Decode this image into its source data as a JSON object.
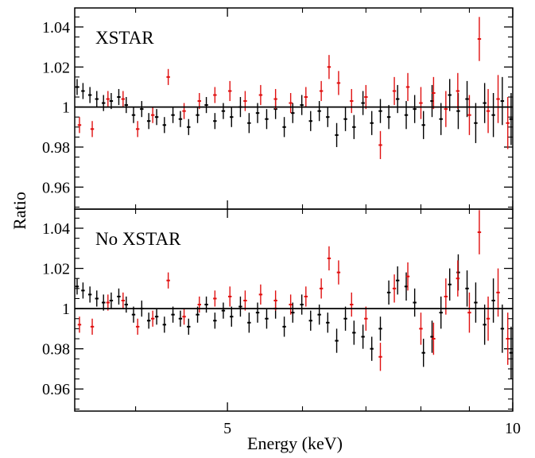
{
  "chart_data": [
    {
      "type": "scatter",
      "panel_label": "XSTAR",
      "xlabel": "Energy  (keV)",
      "ylabel": "Ratio",
      "x_scale": "log",
      "xlim": [
        3.45,
        10.0
      ],
      "ylim": [
        0.949,
        1.0495
      ],
      "x_ticks": [
        5,
        10
      ],
      "y_ticks": [
        0.96,
        0.98,
        1,
        1.02,
        1.04
      ],
      "y_tick_labels": [
        "0.96",
        "0.98",
        "1",
        "1.02",
        "1.04"
      ],
      "reference_line": 1.0,
      "series": [
        {
          "color": "#000000",
          "points": [
            {
              "x": 3.47,
              "y": 1.01,
              "err": 0.004
            },
            {
              "x": 3.52,
              "y": 1.008,
              "err": 0.004
            },
            {
              "x": 3.58,
              "y": 1.006,
              "err": 0.004
            },
            {
              "x": 3.64,
              "y": 1.004,
              "err": 0.004
            },
            {
              "x": 3.7,
              "y": 1.002,
              "err": 0.004
            },
            {
              "x": 3.77,
              "y": 1.003,
              "err": 0.004
            },
            {
              "x": 3.84,
              "y": 1.005,
              "err": 0.004
            },
            {
              "x": 3.91,
              "y": 1.001,
              "err": 0.004
            },
            {
              "x": 3.98,
              "y": 0.996,
              "err": 0.004
            },
            {
              "x": 4.06,
              "y": 0.999,
              "err": 0.004
            },
            {
              "x": 4.13,
              "y": 0.993,
              "err": 0.004
            },
            {
              "x": 4.21,
              "y": 0.995,
              "err": 0.004
            },
            {
              "x": 4.29,
              "y": 0.991,
              "err": 0.004
            },
            {
              "x": 4.38,
              "y": 0.996,
              "err": 0.004
            },
            {
              "x": 4.46,
              "y": 0.994,
              "err": 0.004
            },
            {
              "x": 4.55,
              "y": 0.99,
              "err": 0.004
            },
            {
              "x": 4.65,
              "y": 0.996,
              "err": 0.004
            },
            {
              "x": 4.75,
              "y": 1.001,
              "err": 0.004
            },
            {
              "x": 4.85,
              "y": 0.993,
              "err": 0.004
            },
            {
              "x": 4.95,
              "y": 0.998,
              "err": 0.004
            },
            {
              "x": 5.05,
              "y": 0.995,
              "err": 0.005
            },
            {
              "x": 5.16,
              "y": 1.0,
              "err": 0.005
            },
            {
              "x": 5.27,
              "y": 0.992,
              "err": 0.005
            },
            {
              "x": 5.38,
              "y": 0.997,
              "err": 0.005
            },
            {
              "x": 5.5,
              "y": 0.994,
              "err": 0.005
            },
            {
              "x": 5.62,
              "y": 0.999,
              "err": 0.005
            },
            {
              "x": 5.74,
              "y": 0.99,
              "err": 0.005
            },
            {
              "x": 5.86,
              "y": 0.997,
              "err": 0.005
            },
            {
              "x": 5.99,
              "y": 1.001,
              "err": 0.005
            },
            {
              "x": 6.12,
              "y": 0.993,
              "err": 0.005
            },
            {
              "x": 6.25,
              "y": 0.998,
              "err": 0.005
            },
            {
              "x": 6.38,
              "y": 0.995,
              "err": 0.005
            },
            {
              "x": 6.52,
              "y": 0.986,
              "err": 0.006
            },
            {
              "x": 6.66,
              "y": 0.994,
              "err": 0.006
            },
            {
              "x": 6.8,
              "y": 0.99,
              "err": 0.006
            },
            {
              "x": 6.95,
              "y": 1.002,
              "err": 0.006
            },
            {
              "x": 7.1,
              "y": 0.992,
              "err": 0.006
            },
            {
              "x": 7.25,
              "y": 0.998,
              "err": 0.006
            },
            {
              "x": 7.4,
              "y": 0.995,
              "err": 0.006
            },
            {
              "x": 7.56,
              "y": 1.004,
              "err": 0.007
            },
            {
              "x": 7.72,
              "y": 0.996,
              "err": 0.007
            },
            {
              "x": 7.88,
              "y": 0.999,
              "err": 0.007
            },
            {
              "x": 8.05,
              "y": 0.991,
              "err": 0.007
            },
            {
              "x": 8.22,
              "y": 1.003,
              "err": 0.008
            },
            {
              "x": 8.4,
              "y": 0.994,
              "err": 0.008
            },
            {
              "x": 8.58,
              "y": 1.006,
              "err": 0.008
            },
            {
              "x": 8.76,
              "y": 0.998,
              "err": 0.009
            },
            {
              "x": 8.95,
              "y": 1.004,
              "err": 0.009
            },
            {
              "x": 9.14,
              "y": 0.992,
              "err": 0.01
            },
            {
              "x": 9.34,
              "y": 1.002,
              "err": 0.01
            },
            {
              "x": 9.54,
              "y": 0.996,
              "err": 0.011
            },
            {
              "x": 9.75,
              "y": 1.003,
              "err": 0.012
            },
            {
              "x": 9.96,
              "y": 0.994,
              "err": 0.013
            }
          ]
        },
        {
          "color": "#e01010",
          "points": [
            {
              "x": 3.49,
              "y": 0.991,
              "err": 0.004
            },
            {
              "x": 3.6,
              "y": 0.989,
              "err": 0.004
            },
            {
              "x": 3.74,
              "y": 1.004,
              "err": 0.004
            },
            {
              "x": 3.88,
              "y": 1.004,
              "err": 0.004
            },
            {
              "x": 4.02,
              "y": 0.989,
              "err": 0.004
            },
            {
              "x": 4.17,
              "y": 0.996,
              "err": 0.004
            },
            {
              "x": 4.33,
              "y": 1.015,
              "err": 0.004
            },
            {
              "x": 4.5,
              "y": 0.998,
              "err": 0.004
            },
            {
              "x": 4.67,
              "y": 1.003,
              "err": 0.004
            },
            {
              "x": 4.85,
              "y": 1.006,
              "err": 0.004
            },
            {
              "x": 5.03,
              "y": 1.008,
              "err": 0.005
            },
            {
              "x": 5.22,
              "y": 1.003,
              "err": 0.005
            },
            {
              "x": 5.42,
              "y": 1.006,
              "err": 0.005
            },
            {
              "x": 5.62,
              "y": 1.004,
              "err": 0.005
            },
            {
              "x": 5.83,
              "y": 1.002,
              "err": 0.005
            },
            {
              "x": 6.05,
              "y": 1.005,
              "err": 0.005
            },
            {
              "x": 6.28,
              "y": 1.008,
              "err": 0.005
            },
            {
              "x": 6.4,
              "y": 1.02,
              "err": 0.006
            },
            {
              "x": 6.55,
              "y": 1.012,
              "err": 0.006
            },
            {
              "x": 6.76,
              "y": 1.003,
              "err": 0.006
            },
            {
              "x": 7.0,
              "y": 1.005,
              "err": 0.006
            },
            {
              "x": 7.25,
              "y": 0.981,
              "err": 0.007
            },
            {
              "x": 7.5,
              "y": 1.008,
              "err": 0.007
            },
            {
              "x": 7.75,
              "y": 1.01,
              "err": 0.007
            },
            {
              "x": 8.0,
              "y": 1.002,
              "err": 0.008
            },
            {
              "x": 8.25,
              "y": 1.007,
              "err": 0.008
            },
            {
              "x": 8.5,
              "y": 0.999,
              "err": 0.009
            },
            {
              "x": 8.75,
              "y": 1.008,
              "err": 0.009
            },
            {
              "x": 9.0,
              "y": 0.996,
              "err": 0.01
            },
            {
              "x": 9.22,
              "y": 1.034,
              "err": 0.011
            },
            {
              "x": 9.42,
              "y": 0.998,
              "err": 0.011
            },
            {
              "x": 9.65,
              "y": 1.004,
              "err": 0.012
            },
            {
              "x": 9.88,
              "y": 0.992,
              "err": 0.013
            }
          ]
        }
      ]
    },
    {
      "type": "scatter",
      "panel_label": "No XSTAR",
      "xlabel": "Energy  (keV)",
      "ylabel": "Ratio",
      "x_scale": "log",
      "xlim": [
        3.45,
        10.0
      ],
      "ylim": [
        0.949,
        1.0495
      ],
      "x_ticks": [
        5,
        10
      ],
      "x_tick_labels": [
        "5",
        "10"
      ],
      "y_ticks": [
        0.96,
        0.98,
        1,
        1.02,
        1.04
      ],
      "y_tick_labels": [
        "0.96",
        "0.98",
        "1",
        "1.02",
        "1.04"
      ],
      "reference_line": 1.0,
      "series": [
        {
          "color": "#000000",
          "points": [
            {
              "x": 3.47,
              "y": 1.011,
              "err": 0.004
            },
            {
              "x": 3.52,
              "y": 1.009,
              "err": 0.004
            },
            {
              "x": 3.58,
              "y": 1.007,
              "err": 0.004
            },
            {
              "x": 3.64,
              "y": 1.005,
              "err": 0.004
            },
            {
              "x": 3.7,
              "y": 1.003,
              "err": 0.004
            },
            {
              "x": 3.77,
              "y": 1.004,
              "err": 0.004
            },
            {
              "x": 3.84,
              "y": 1.006,
              "err": 0.004
            },
            {
              "x": 3.91,
              "y": 1.002,
              "err": 0.004
            },
            {
              "x": 3.98,
              "y": 0.997,
              "err": 0.004
            },
            {
              "x": 4.06,
              "y": 1.0,
              "err": 0.004
            },
            {
              "x": 4.13,
              "y": 0.994,
              "err": 0.004
            },
            {
              "x": 4.21,
              "y": 0.996,
              "err": 0.004
            },
            {
              "x": 4.29,
              "y": 0.992,
              "err": 0.004
            },
            {
              "x": 4.38,
              "y": 0.997,
              "err": 0.004
            },
            {
              "x": 4.46,
              "y": 0.995,
              "err": 0.004
            },
            {
              "x": 4.55,
              "y": 0.991,
              "err": 0.004
            },
            {
              "x": 4.65,
              "y": 0.997,
              "err": 0.004
            },
            {
              "x": 4.75,
              "y": 1.002,
              "err": 0.004
            },
            {
              "x": 4.85,
              "y": 0.994,
              "err": 0.004
            },
            {
              "x": 4.95,
              "y": 0.999,
              "err": 0.004
            },
            {
              "x": 5.05,
              "y": 0.996,
              "err": 0.005
            },
            {
              "x": 5.16,
              "y": 1.001,
              "err": 0.005
            },
            {
              "x": 5.27,
              "y": 0.993,
              "err": 0.005
            },
            {
              "x": 5.38,
              "y": 0.998,
              "err": 0.005
            },
            {
              "x": 5.5,
              "y": 0.995,
              "err": 0.005
            },
            {
              "x": 5.62,
              "y": 1.0,
              "err": 0.005
            },
            {
              "x": 5.74,
              "y": 0.991,
              "err": 0.005
            },
            {
              "x": 5.86,
              "y": 0.998,
              "err": 0.005
            },
            {
              "x": 5.99,
              "y": 1.002,
              "err": 0.005
            },
            {
              "x": 6.12,
              "y": 0.994,
              "err": 0.005
            },
            {
              "x": 6.25,
              "y": 0.997,
              "err": 0.005
            },
            {
              "x": 6.38,
              "y": 0.993,
              "err": 0.005
            },
            {
              "x": 6.52,
              "y": 0.984,
              "err": 0.006
            },
            {
              "x": 6.66,
              "y": 0.995,
              "err": 0.006
            },
            {
              "x": 6.8,
              "y": 0.988,
              "err": 0.006
            },
            {
              "x": 6.95,
              "y": 0.986,
              "err": 0.006
            },
            {
              "x": 7.1,
              "y": 0.98,
              "err": 0.006
            },
            {
              "x": 7.25,
              "y": 0.99,
              "err": 0.006
            },
            {
              "x": 7.4,
              "y": 1.008,
              "err": 0.006
            },
            {
              "x": 7.56,
              "y": 1.014,
              "err": 0.007
            },
            {
              "x": 7.72,
              "y": 1.011,
              "err": 0.007
            },
            {
              "x": 7.88,
              "y": 1.003,
              "err": 0.007
            },
            {
              "x": 8.05,
              "y": 0.978,
              "err": 0.007
            },
            {
              "x": 8.22,
              "y": 0.986,
              "err": 0.008
            },
            {
              "x": 8.4,
              "y": 0.998,
              "err": 0.008
            },
            {
              "x": 8.58,
              "y": 1.012,
              "err": 0.008
            },
            {
              "x": 8.76,
              "y": 1.018,
              "err": 0.009
            },
            {
              "x": 8.95,
              "y": 1.01,
              "err": 0.009
            },
            {
              "x": 9.14,
              "y": 1.003,
              "err": 0.01
            },
            {
              "x": 9.34,
              "y": 0.992,
              "err": 0.01
            },
            {
              "x": 9.54,
              "y": 1.004,
              "err": 0.011
            },
            {
              "x": 9.75,
              "y": 0.99,
              "err": 0.012
            },
            {
              "x": 9.96,
              "y": 0.978,
              "err": 0.013
            }
          ]
        },
        {
          "color": "#e01010",
          "points": [
            {
              "x": 3.49,
              "y": 0.992,
              "err": 0.004
            },
            {
              "x": 3.6,
              "y": 0.991,
              "err": 0.004
            },
            {
              "x": 3.74,
              "y": 1.003,
              "err": 0.004
            },
            {
              "x": 3.88,
              "y": 1.004,
              "err": 0.004
            },
            {
              "x": 4.02,
              "y": 0.991,
              "err": 0.004
            },
            {
              "x": 4.17,
              "y": 0.995,
              "err": 0.004
            },
            {
              "x": 4.33,
              "y": 1.014,
              "err": 0.004
            },
            {
              "x": 4.5,
              "y": 0.996,
              "err": 0.004
            },
            {
              "x": 4.67,
              "y": 1.002,
              "err": 0.004
            },
            {
              "x": 4.85,
              "y": 1.005,
              "err": 0.004
            },
            {
              "x": 5.03,
              "y": 1.006,
              "err": 0.005
            },
            {
              "x": 5.22,
              "y": 1.004,
              "err": 0.005
            },
            {
              "x": 5.42,
              "y": 1.007,
              "err": 0.005
            },
            {
              "x": 5.62,
              "y": 1.004,
              "err": 0.005
            },
            {
              "x": 5.83,
              "y": 1.002,
              "err": 0.005
            },
            {
              "x": 6.05,
              "y": 1.006,
              "err": 0.005
            },
            {
              "x": 6.28,
              "y": 1.01,
              "err": 0.005
            },
            {
              "x": 6.4,
              "y": 1.025,
              "err": 0.006
            },
            {
              "x": 6.55,
              "y": 1.018,
              "err": 0.006
            },
            {
              "x": 6.76,
              "y": 1.002,
              "err": 0.006
            },
            {
              "x": 7.0,
              "y": 0.995,
              "err": 0.006
            },
            {
              "x": 7.25,
              "y": 0.976,
              "err": 0.007
            },
            {
              "x": 7.5,
              "y": 1.01,
              "err": 0.007
            },
            {
              "x": 7.75,
              "y": 1.016,
              "err": 0.007
            },
            {
              "x": 8.0,
              "y": 0.99,
              "err": 0.008
            },
            {
              "x": 8.25,
              "y": 0.985,
              "err": 0.008
            },
            {
              "x": 8.5,
              "y": 1.006,
              "err": 0.009
            },
            {
              "x": 8.75,
              "y": 1.015,
              "err": 0.009
            },
            {
              "x": 9.0,
              "y": 0.998,
              "err": 0.01
            },
            {
              "x": 9.22,
              "y": 1.038,
              "err": 0.011
            },
            {
              "x": 9.42,
              "y": 0.995,
              "err": 0.011
            },
            {
              "x": 9.65,
              "y": 1.008,
              "err": 0.012
            },
            {
              "x": 9.88,
              "y": 0.985,
              "err": 0.013
            }
          ]
        }
      ]
    }
  ]
}
